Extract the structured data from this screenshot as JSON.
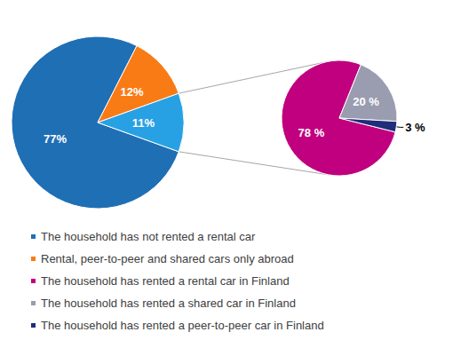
{
  "chart_data": [
    {
      "type": "pie",
      "categories": [
        "The household has not rented a rental car",
        "Rental, peer-to-peer and shared cars only abroad",
        null
      ],
      "values": [
        77,
        12,
        11
      ],
      "value_labels": [
        "77%",
        "12%",
        "11%"
      ],
      "colors": [
        "#1f6fb5",
        "#f97b16",
        "#27a1e3"
      ],
      "data_labels": true,
      "legend": "bottom"
    },
    {
      "type": "pie",
      "categories": [
        "The household has rented a rental car in Finland",
        "The household has rented a shared car in Finland",
        "The household has rented a peer-to-peer car in Finland"
      ],
      "values": [
        78,
        20,
        3
      ],
      "value_labels": [
        "78 %",
        "20 %",
        "3 %"
      ],
      "colors": [
        "#c0007e",
        "#9a9cb0",
        "#1f2d7a"
      ],
      "data_labels": true
    }
  ]
}
